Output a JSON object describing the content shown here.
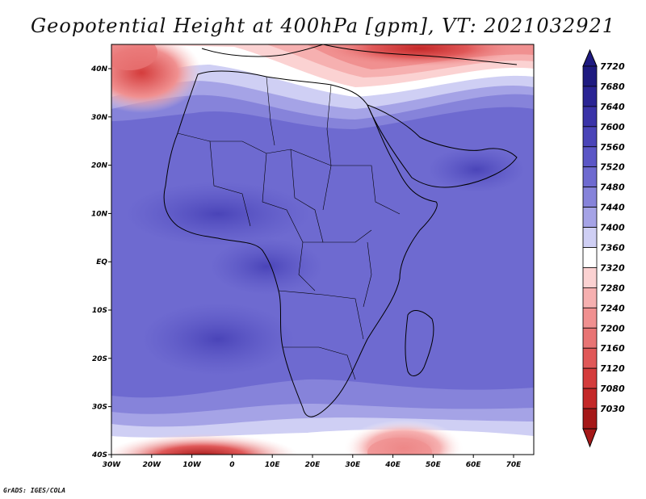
{
  "title": "Geopotential Height at 400hPa [gpm], VT: 2021032921",
  "credit": "GrADS: IGES/COLA",
  "map": {
    "region": "Africa",
    "variable": "Geopotential Height",
    "level": "400hPa",
    "units": "gpm",
    "valid_time": "2021032921",
    "lon_labels": [
      "30W",
      "20W",
      "10W",
      "0",
      "10E",
      "20E",
      "30E",
      "40E",
      "50E",
      "60E",
      "70E"
    ],
    "lat_labels": [
      "40N",
      "30N",
      "20N",
      "10N",
      "EQ",
      "10S",
      "20S",
      "30S",
      "40S"
    ]
  },
  "colorbar": {
    "levels": [
      "7720",
      "7680",
      "7640",
      "7600",
      "7560",
      "7520",
      "7480",
      "7440",
      "7400",
      "7360",
      "7320",
      "7280",
      "7240",
      "7200",
      "7160",
      "7120",
      "7080",
      "7030"
    ],
    "colors": [
      "#1e1a80",
      "#2a2494",
      "#3a33a8",
      "#4a44b8",
      "#5b56c6",
      "#6e6ad0",
      "#8683da",
      "#a5a3e6",
      "#cfcff4",
      "#ffffff",
      "#fbd2d2",
      "#f6b0b0",
      "#f09090",
      "#e87474",
      "#e05858",
      "#d43c3c",
      "#c42828",
      "#a51818"
    ]
  }
}
